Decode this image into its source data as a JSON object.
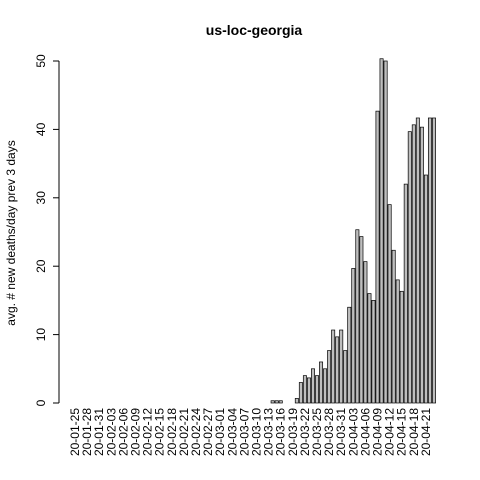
{
  "chart_data": {
    "type": "bar",
    "title": "us-loc-georgia",
    "xlabel": "",
    "ylabel": "avg. # new deaths/day prev  3  days",
    "ylim": [
      0,
      50
    ],
    "yticks": [
      0,
      10,
      20,
      30,
      40,
      50
    ],
    "xtick_labels": [
      "20-01-25",
      "20-01-28",
      "20-01-31",
      "20-02-03",
      "20-02-06",
      "20-02-09",
      "20-02-12",
      "20-02-15",
      "20-02-18",
      "20-02-21",
      "20-02-24",
      "20-02-27",
      "20-03-01",
      "20-03-04",
      "20-03-07",
      "20-03-10",
      "20-03-13",
      "20-03-16",
      "20-03-19",
      "20-03-22",
      "20-03-25",
      "20-03-28",
      "20-03-31",
      "20-04-03",
      "20-04-06",
      "20-04-09",
      "20-04-12",
      "20-04-15",
      "20-04-18",
      "20-04-21"
    ],
    "values": [
      0,
      0,
      0,
      0,
      0,
      0,
      0,
      0,
      0,
      0,
      0,
      0,
      0,
      0,
      0,
      0,
      0,
      0,
      0,
      0,
      0,
      0,
      0,
      0,
      0,
      0,
      0,
      0,
      0,
      0,
      0,
      0,
      0,
      0,
      0,
      0,
      0,
      0,
      0,
      0,
      0,
      0,
      0,
      0,
      0,
      0,
      0,
      0,
      0,
      0.33,
      0.33,
      0.33,
      0,
      0,
      0,
      0.67,
      3,
      4,
      3.67,
      5,
      4,
      6,
      5,
      7.67,
      10.67,
      9.67,
      10.67,
      7.67,
      14,
      19.67,
      25.33,
      24.33,
      20.67,
      16,
      15,
      42.67,
      50.33,
      50,
      29,
      22.33,
      18,
      16.33,
      32,
      39.67,
      40.67,
      41.67,
      40.33,
      33.33,
      41.67,
      41.67
    ],
    "grid": false
  }
}
